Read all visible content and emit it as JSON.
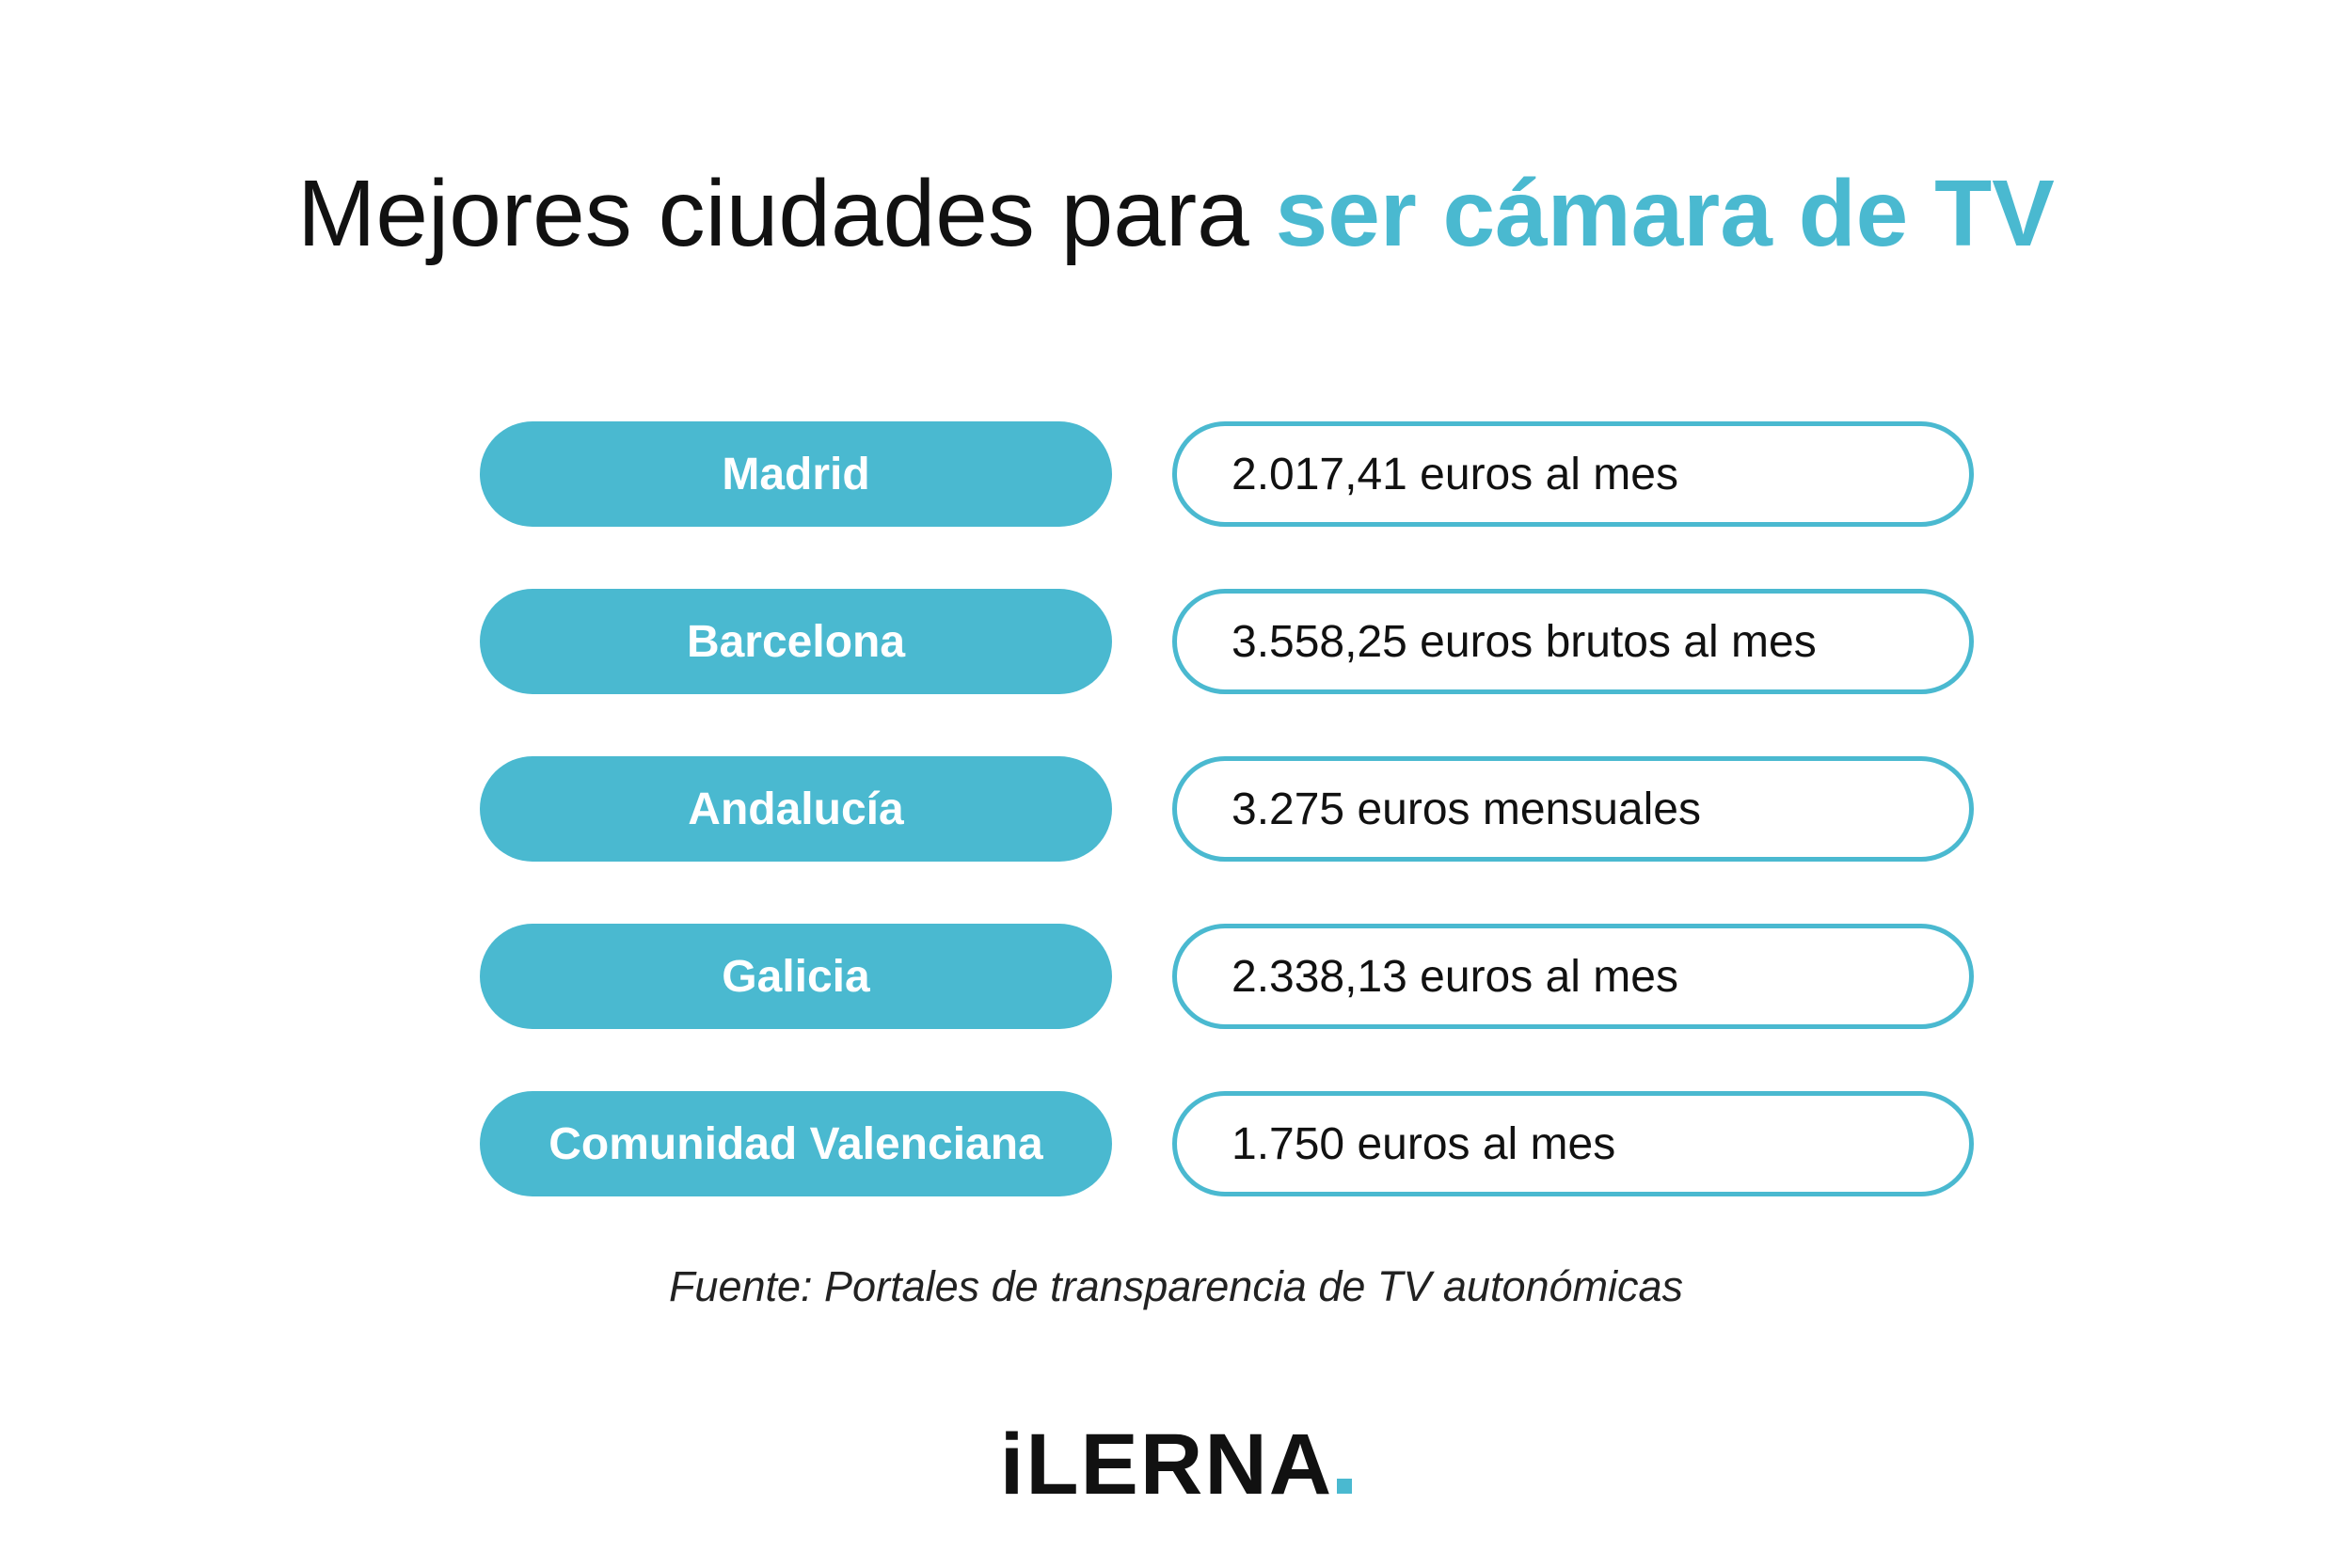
{
  "header": {
    "title_plain": "Mejores ciudades para",
    "title_highlight": "ser cámara de TV"
  },
  "rows": [
    {
      "region": "Madrid",
      "salary": "2.017,41 euros al mes"
    },
    {
      "region": "Barcelona",
      "salary": "3.558,25 euros brutos al mes"
    },
    {
      "region": "Andalucía",
      "salary": "3.275 euros mensuales"
    },
    {
      "region": "Galicia",
      "salary": "2.338,13 euros al mes"
    },
    {
      "region": "Comunidad Valenciana",
      "salary": "1.750 euros al mes"
    }
  ],
  "source": "Fuente: Portales de transparencia de TV autonómicas",
  "logo": "iLERNA"
}
